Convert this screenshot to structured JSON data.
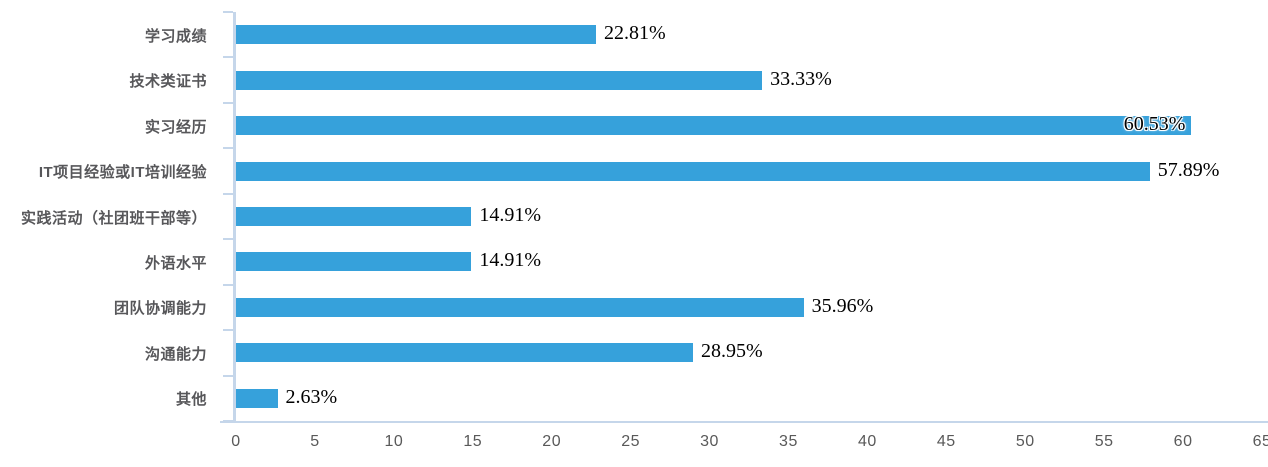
{
  "chart_data": {
    "type": "bar",
    "orientation": "horizontal",
    "title": "",
    "xlabel": "",
    "ylabel": "",
    "categories": [
      "学习成绩",
      "技术类证书",
      "实习经历",
      "IT项目经验或IT培训经验",
      "实践活动（社团班干部等）",
      "外语水平",
      "团队协调能力",
      "沟通能力",
      "其他"
    ],
    "values": [
      22.81,
      33.33,
      60.53,
      57.89,
      14.91,
      14.91,
      35.96,
      28.95,
      2.63
    ],
    "data_labels": [
      "22.81%",
      "33.33%",
      "60.53%",
      "57.89%",
      "14.91%",
      "14.91%",
      "35.96%",
      "28.95%",
      "2.63%"
    ],
    "label_inside": [
      false,
      false,
      true,
      false,
      false,
      false,
      false,
      false,
      false
    ],
    "xlim": [
      0,
      65
    ],
    "x_ticks": [
      0,
      5,
      10,
      15,
      20,
      25,
      30,
      35,
      40,
      45,
      50,
      55,
      60,
      65
    ],
    "grid": false,
    "legend": false,
    "colors": {
      "bar": "#36A1DB",
      "axis_line": "#C5D6EA",
      "tick_label": "#595959",
      "category_label": "#57575A",
      "value_label": "#000000",
      "background": "#FFFFFF"
    }
  }
}
